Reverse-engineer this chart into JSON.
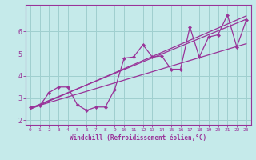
{
  "xlabel": "Windchill (Refroidissement éolien,°C)",
  "bg_color": "#c5eaea",
  "grid_color": "#9fcfcf",
  "line_color": "#993399",
  "xlim": [
    -0.5,
    23.5
  ],
  "ylim": [
    1.8,
    7.2
  ],
  "xticks": [
    0,
    1,
    2,
    3,
    4,
    5,
    6,
    7,
    8,
    9,
    10,
    11,
    12,
    13,
    14,
    15,
    16,
    17,
    18,
    19,
    20,
    21,
    22,
    23
  ],
  "yticks": [
    2,
    3,
    4,
    5,
    6
  ],
  "data_x": [
    0,
    1,
    2,
    3,
    4,
    5,
    6,
    7,
    8,
    9,
    10,
    11,
    12,
    13,
    14,
    15,
    16,
    17,
    18,
    19,
    20,
    21,
    22,
    23
  ],
  "data_y": [
    2.6,
    2.65,
    3.25,
    3.5,
    3.5,
    2.7,
    2.45,
    2.6,
    2.6,
    3.4,
    4.8,
    4.85,
    5.4,
    4.85,
    4.9,
    4.3,
    4.3,
    6.2,
    4.85,
    5.75,
    5.85,
    6.75,
    5.3,
    6.5
  ],
  "trend1_x": [
    0,
    23
  ],
  "trend1_y": [
    2.55,
    6.55
  ],
  "trend2_x": [
    0,
    23
  ],
  "trend2_y": [
    2.55,
    5.45
  ],
  "trend3_x": [
    0,
    23
  ],
  "trend3_y": [
    2.5,
    6.7
  ]
}
